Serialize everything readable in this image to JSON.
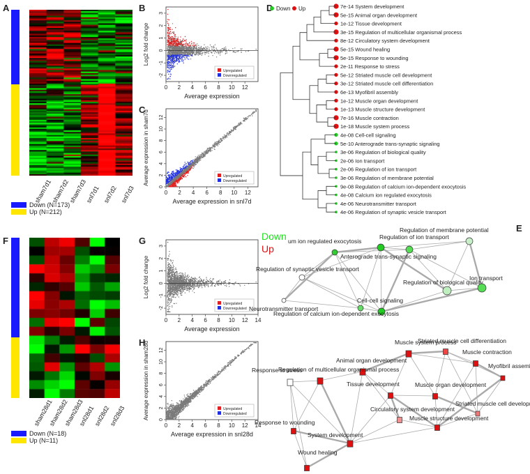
{
  "panels": {
    "A": "A",
    "B": "B",
    "C": "C",
    "D": "D",
    "E": "E",
    "F": "F",
    "G": "G",
    "H": "H"
  },
  "colors": {
    "down": "#1a1aff",
    "up": "#ffe600",
    "heat_red": "#ff0000",
    "heat_green": "#00d000",
    "upregulated": "#e02020",
    "downregulated": "#2030e0",
    "scatter_gray": "#7a7a7a",
    "node_green": "#22cc22",
    "node_red": "#dd1111"
  },
  "heatmapA": {
    "columns": [
      "sham7d1",
      "sham7d2",
      "sham7d3",
      "snl7d1",
      "snl7d2",
      "snl7d3"
    ],
    "legend": [
      {
        "label": "Down (N=173)",
        "color": "#1a1aff"
      },
      {
        "label": "Up (N=212)",
        "color": "#ffe600"
      }
    ],
    "down_fraction": 0.449
  },
  "heatmapF": {
    "columns": [
      "sham28d1",
      "sham28d2",
      "sham28d3",
      "snl28d1",
      "snl28d2",
      "snl28d3"
    ],
    "legend": [
      {
        "label": "Down (N=18)",
        "color": "#1a1aff"
      },
      {
        "label": "Up (N=11)",
        "color": "#ffe600"
      }
    ],
    "down_fraction": 0.621
  },
  "chart_data": [
    {
      "panel": "B",
      "type": "scatter",
      "xlabel": "Average expression",
      "ylabel": "Log2 fold change",
      "xticks": [
        0,
        2,
        4,
        6,
        8,
        10,
        12
      ],
      "yticks": [
        -2,
        -1,
        0,
        1,
        2,
        3
      ],
      "xlim": [
        0,
        14
      ],
      "ylim": [
        -2.5,
        3.5
      ],
      "legend": [
        "Upregulated",
        "Downregulated"
      ],
      "legend_position": "bottom-right"
    },
    {
      "panel": "C",
      "type": "scatter",
      "xlabel": "Average expression in snl7d",
      "ylabel": "Average expression in sham7d",
      "xticks": [
        0,
        2,
        4,
        6,
        8,
        10,
        12
      ],
      "yticks": [
        0,
        2,
        4,
        6,
        8,
        10,
        12
      ],
      "xlim": [
        0,
        13.5
      ],
      "ylim": [
        0,
        13.5
      ],
      "legend": [
        "Upregulated",
        "Downregulated"
      ],
      "legend_position": "bottom-right"
    },
    {
      "panel": "G",
      "type": "scatter",
      "xlabel": "Average expression",
      "ylabel": "Log2 fold change",
      "xticks": [
        0,
        2,
        4,
        6,
        8,
        10,
        12,
        14
      ],
      "yticks": [
        -2,
        -1,
        0,
        1,
        2,
        3
      ],
      "xlim": [
        0,
        14
      ],
      "ylim": [
        -2.5,
        3.5
      ],
      "legend": [
        "Upregulated",
        "Downregulated"
      ],
      "legend_position": "bottom-right"
    },
    {
      "panel": "H",
      "type": "scatter",
      "xlabel": "Average expression in snl28d",
      "ylabel": "Average expression in sham28d",
      "xticks": [
        0,
        2,
        4,
        6,
        8,
        10,
        12,
        14
      ],
      "yticks": [
        0,
        2,
        4,
        6,
        8,
        10,
        12
      ],
      "xlim": [
        0,
        14
      ],
      "ylim": [
        0,
        13.5
      ],
      "legend": [
        "Upregulated",
        "Downregulated"
      ],
      "legend_position": "bottom-right"
    }
  ],
  "dendrogram": {
    "legend": [
      {
        "label": "Down",
        "color": "#22cc22"
      },
      {
        "label": "Up",
        "color": "#dd1111"
      }
    ],
    "terms": [
      {
        "p": "7e-14",
        "label": "System development",
        "dir": "up",
        "size": 4
      },
      {
        "p": "5e-15",
        "label": "Animal organ development",
        "dir": "up",
        "size": 4
      },
      {
        "p": "1e-12",
        "label": "Tissue development",
        "dir": "up",
        "size": 3
      },
      {
        "p": "3e-15",
        "label": "Regulation of multicellular organismal process",
        "dir": "up",
        "size": 4
      },
      {
        "p": "8e-12",
        "label": "Circulatory system development",
        "dir": "up",
        "size": 3
      },
      {
        "p": "5e-15",
        "label": "Wound healing",
        "dir": "up",
        "size": 4
      },
      {
        "p": "5e-15",
        "label": "Response to wounding",
        "dir": "up",
        "size": 4
      },
      {
        "p": "2e-11",
        "label": "Response to stress",
        "dir": "up",
        "size": 3
      },
      {
        "p": "5e-12",
        "label": "Striated muscle cell development",
        "dir": "up",
        "size": 3
      },
      {
        "p": "3e-12",
        "label": "Striated muscle cell differentiation",
        "dir": "up",
        "size": 3
      },
      {
        "p": "6e-13",
        "label": "Myofibril assembly",
        "dir": "up",
        "size": 3
      },
      {
        "p": "1e-12",
        "label": "Muscle organ development",
        "dir": "up",
        "size": 3
      },
      {
        "p": "1e-13",
        "label": "Muscle structure development",
        "dir": "up",
        "size": 3
      },
      {
        "p": "7e-16",
        "label": "Muscle contraction",
        "dir": "up",
        "size": 4
      },
      {
        "p": "1e-18",
        "label": "Muscle system process",
        "dir": "up",
        "size": 4
      },
      {
        "p": "4e-08",
        "label": "Cell-cell signaling",
        "dir": "down",
        "size": 3
      },
      {
        "p": "5e-10",
        "label": "Anterograde trans-synaptic signaling",
        "dir": "down",
        "size": 3
      },
      {
        "p": "3e-06",
        "label": "Regulation of biological quality",
        "dir": "down",
        "size": 2
      },
      {
        "p": "2e-06",
        "label": "Ion transport",
        "dir": "down",
        "size": 2
      },
      {
        "p": "2e-06",
        "label": "Regulation of ion transport",
        "dir": "down",
        "size": 2
      },
      {
        "p": "3e-06",
        "label": "Regulation of membrane potential",
        "dir": "down",
        "size": 2
      },
      {
        "p": "9e-08",
        "label": "Regulation of calcium ion-dependent exocytosis",
        "dir": "down",
        "size": 2
      },
      {
        "p": "4e-08",
        "label": "Calcium ion regulated exocytosis",
        "dir": "down",
        "size": 2
      },
      {
        "p": "4e-06",
        "label": "Neurotransmitter transport",
        "dir": "down",
        "size": 2
      },
      {
        "p": "4e-06",
        "label": "Regulation of synaptic vesicle transport",
        "dir": "down",
        "size": 2
      }
    ]
  },
  "network": {
    "legend": [
      {
        "label": "Down",
        "color": "#22cc22"
      },
      {
        "label": "Up",
        "color": "#dd1111"
      }
    ],
    "down_nodes": [
      {
        "label": "um ion regulated exocytosis",
        "fill": "#33cc33"
      },
      {
        "label": "Regulation of ion transport",
        "fill": "#55dd55"
      },
      {
        "label": "Regulation of membrane potential",
        "fill": "#c8f0c8"
      },
      {
        "label": "Regulation of synaptic vesicle transport",
        "fill": "#ffffff"
      },
      {
        "label": "Anterograde trans-synaptic signaling",
        "fill": "#22cc22"
      },
      {
        "label": "Regulation of biological quality",
        "fill": "#bfeebf"
      },
      {
        "label": "Ion transport",
        "fill": "#55dd55"
      },
      {
        "label": "Cell-cell signaling",
        "fill": "#22cc22"
      },
      {
        "label": "Neurotransmitter transport",
        "fill": "#ffffff"
      },
      {
        "label": "Regulation of calcium ion-dependent exocytosis",
        "fill": "#66dd66"
      }
    ],
    "up_nodes": [
      {
        "label": "Muscle system process",
        "fill": "#dd1111"
      },
      {
        "label": "Striated muscle cell differentiation",
        "fill": "#ee4444"
      },
      {
        "label": "Muscle contraction",
        "fill": "#dd1111"
      },
      {
        "label": "Myofibril assembly",
        "fill": "#dd1111"
      },
      {
        "label": "Animal organ development",
        "fill": "#dd1111"
      },
      {
        "label": "Regulation of multicellular organismal process",
        "fill": "#dd1111"
      },
      {
        "label": "Response to stress",
        "fill": "#ffffff"
      },
      {
        "label": "Tissue development",
        "fill": "#dd1111"
      },
      {
        "label": "Muscle organ development",
        "fill": "#dd1111"
      },
      {
        "label": "Striated muscle cell development",
        "fill": "#ee7777"
      },
      {
        "label": "Circulatory system development",
        "fill": "#f09090"
      },
      {
        "label": "Muscle structure development",
        "fill": "#dd1111"
      },
      {
        "label": "Response to wounding",
        "fill": "#dd1111"
      },
      {
        "label": "System development",
        "fill": "#dd1111"
      },
      {
        "label": "Wound healing",
        "fill": "#dd1111"
      }
    ]
  }
}
